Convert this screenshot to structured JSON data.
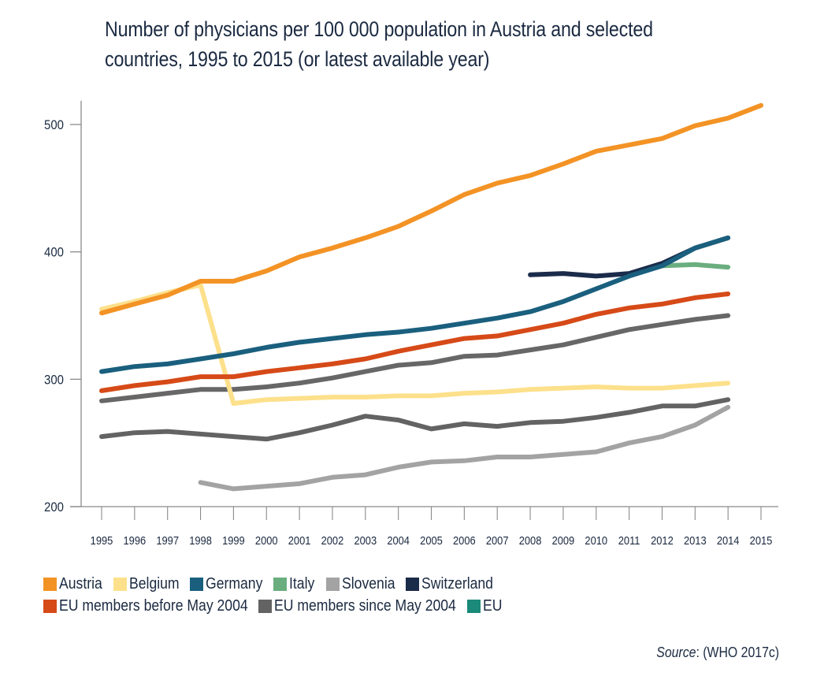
{
  "chart_data": {
    "type": "line",
    "title": "Number of physicians per 100 000 population in Austria and selected countries, 1995 to 2015 (or latest available year)",
    "title_lines": [
      "Number of physicians per 100 000 population in Austria and selected",
      "countries, 1995 to 2015 (or latest available year)"
    ],
    "xlabel": "",
    "ylabel": "",
    "x": [
      1995,
      1996,
      1997,
      1998,
      1999,
      2000,
      2001,
      2002,
      2003,
      2004,
      2005,
      2006,
      2007,
      2008,
      2009,
      2010,
      2011,
      2012,
      2013,
      2014,
      2015
    ],
    "x_tick_labels": [
      "1995",
      "1996",
      "1997",
      "1998",
      "1999",
      "2000",
      "2001",
      "2002",
      "2003",
      "2004",
      "2005",
      "2006",
      "2007",
      "2008",
      "2009",
      "2010",
      "2011",
      "2012",
      "2013",
      "2014",
      "2015"
    ],
    "ylim": [
      200,
      520
    ],
    "y_ticks": [
      200,
      300,
      400,
      500
    ],
    "y_tick_labels": [
      "200",
      "300",
      "400",
      "500"
    ],
    "grid": false,
    "legend_position": "bottom",
    "series": [
      {
        "name": "Austria",
        "color": "#f39325",
        "draw_color": "#f39325",
        "values": [
          352,
          359,
          366,
          377,
          377,
          385,
          396,
          403,
          411,
          420,
          432,
          445,
          454,
          460,
          469,
          479,
          484,
          489,
          499,
          505,
          515
        ]
      },
      {
        "name": "Belgium",
        "color": "#fde08b",
        "draw_color": "#fde08b",
        "values": [
          355,
          361,
          368,
          374,
          281,
          284,
          285,
          286,
          286,
          287,
          287,
          289,
          290,
          292,
          293,
          294,
          293,
          293,
          295,
          297,
          null
        ]
      },
      {
        "name": "Germany",
        "color": "#1a5f7e",
        "draw_color": "#1a5f7e",
        "values": [
          306,
          310,
          312,
          316,
          320,
          325,
          329,
          332,
          335,
          337,
          340,
          344,
          348,
          353,
          361,
          371,
          381,
          389,
          403,
          411,
          null
        ]
      },
      {
        "name": "Italy",
        "color": "#6aae7f",
        "draw_color": "#6aae7f",
        "values": [
          null,
          null,
          null,
          null,
          null,
          null,
          null,
          null,
          null,
          null,
          null,
          null,
          null,
          null,
          null,
          null,
          null,
          389,
          390,
          388,
          null
        ]
      },
      {
        "name": "Slovenia",
        "color": "#a3a3a3",
        "draw_color": "#a3a3a3",
        "values": [
          null,
          null,
          null,
          219,
          214,
          216,
          218,
          223,
          225,
          231,
          235,
          236,
          239,
          239,
          241,
          243,
          250,
          255,
          264,
          278,
          null
        ]
      },
      {
        "name": "Switzerland",
        "color": "#1b2b4a",
        "draw_color": "#1b2b4a",
        "values": [
          null,
          null,
          null,
          null,
          null,
          null,
          null,
          null,
          null,
          null,
          null,
          null,
          null,
          382,
          383,
          381,
          383,
          391,
          403,
          411,
          null
        ]
      },
      {
        "name": "EU members before May 2004",
        "color": "#d64a18",
        "draw_color": "#d64a18",
        "values": [
          291,
          295,
          298,
          302,
          302,
          306,
          309,
          312,
          316,
          322,
          327,
          332,
          334,
          339,
          344,
          351,
          356,
          359,
          364,
          367,
          null
        ]
      },
      {
        "name": "EU members since May 2004",
        "color": "#636363",
        "draw_color": "#636363",
        "values": [
          255,
          258,
          259,
          257,
          255,
          253,
          258,
          264,
          271,
          268,
          261,
          265,
          263,
          266,
          267,
          270,
          274,
          279,
          279,
          284,
          null
        ]
      },
      {
        "name": "EU",
        "color": "#1b8a7a",
        "draw_color": "#676767",
        "values": [
          283,
          286,
          289,
          292,
          292,
          294,
          297,
          301,
          306,
          311,
          313,
          318,
          319,
          323,
          327,
          333,
          339,
          343,
          347,
          350,
          null
        ]
      }
    ],
    "legend_rows": [
      [
        0,
        1,
        2,
        3,
        4,
        5
      ],
      [
        6,
        7,
        8
      ]
    ],
    "source_label": "Source",
    "source_text": ": (WHO 2017c)"
  }
}
